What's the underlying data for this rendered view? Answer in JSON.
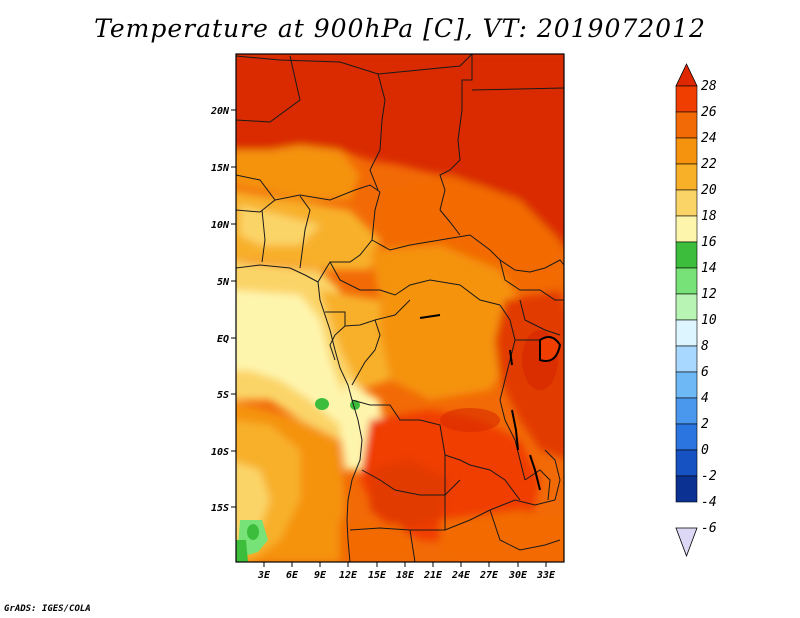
{
  "title": "Temperature at 900hPa [C], VT: 2019072012",
  "footer": "GrADS: IGES/COLA",
  "map": {
    "region": "Central Africa",
    "lat_labels": [
      "20N",
      "15N",
      "10N",
      "5N",
      "EQ",
      "5S",
      "10S",
      "15S"
    ],
    "lon_labels": [
      "3E",
      "6E",
      "9E",
      "12E",
      "15E",
      "18E",
      "21E",
      "24E",
      "27E",
      "30E",
      "33E"
    ]
  },
  "colorbar": {
    "levels": [
      "28",
      "26",
      "24",
      "22",
      "20",
      "18",
      "16",
      "14",
      "12",
      "10",
      "8",
      "6",
      "4",
      "2",
      "0",
      "-2",
      "-4",
      "-6"
    ],
    "colors": [
      "#d92c00",
      "#f03e00",
      "#f26a06",
      "#f5930e",
      "#f8b029",
      "#fbd467",
      "#fef5ad",
      "#3cbe3c",
      "#77e277",
      "#b8f5b4",
      "#dcf5ff",
      "#a8d8ff",
      "#6db8f5",
      "#4a98ee",
      "#2b75e0",
      "#1652c2",
      "#0b3293",
      "#0a1260"
    ],
    "top_arrow": "#e02800",
    "bottom_arrow": "#ddd8f5"
  }
}
